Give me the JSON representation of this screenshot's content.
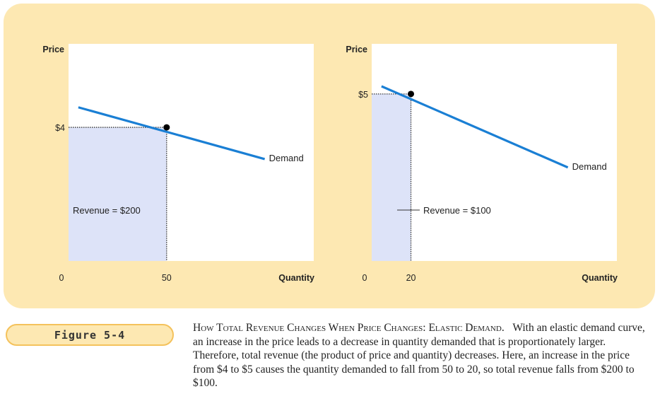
{
  "figure_label": "Figure 5-4",
  "caption": {
    "title": "How Total Revenue Changes When Price Changes: Elastic Demand.",
    "text": "With an elastic demand curve, an increase in the price leads to a decrease in quantity demanded that is proportionately larger. Therefore, total revenue (the product of price and quantity) decreases. Here, an increase in the price from $4 to $5 causes the quantity demanded to fall from 50 to 20, so total revenue falls from $200 to $100."
  },
  "colors": {
    "background": "#fde8b2",
    "demand_line": "#1a7fd4",
    "revenue_fill": "#dde3f8",
    "point": "#000000"
  },
  "chart_data": [
    {
      "type": "line",
      "xlabel": "Quantity",
      "ylabel": "Price",
      "origin_label": "0",
      "x_tick": {
        "value": 50,
        "label": "50"
      },
      "y_tick": {
        "value": 4,
        "label": "$4"
      },
      "series": [
        {
          "name": "Demand",
          "points": [
            [
              5,
              4.6
            ],
            [
              100,
              3.05
            ]
          ]
        }
      ],
      "marked_point": {
        "x": 50,
        "y": 4
      },
      "shaded_area": {
        "x_max": 50,
        "y_max": 4,
        "label": "Revenue = $200"
      },
      "xlim": [
        0,
        125
      ],
      "ylim": [
        0,
        6.5
      ]
    },
    {
      "type": "line",
      "xlabel": "Quantity",
      "ylabel": "Price",
      "origin_label": "0",
      "x_tick": {
        "value": 20,
        "label": "20"
      },
      "y_tick": {
        "value": 5,
        "label": "$5"
      },
      "series": [
        {
          "name": "Demand",
          "points": [
            [
              5,
              5.23
            ],
            [
              100,
              2.8
            ]
          ]
        }
      ],
      "marked_point": {
        "x": 20,
        "y": 5
      },
      "shaded_area": {
        "x_max": 20,
        "y_max": 5,
        "label": "Revenue = $100"
      },
      "xlim": [
        0,
        125
      ],
      "ylim": [
        0,
        6.5
      ]
    }
  ]
}
